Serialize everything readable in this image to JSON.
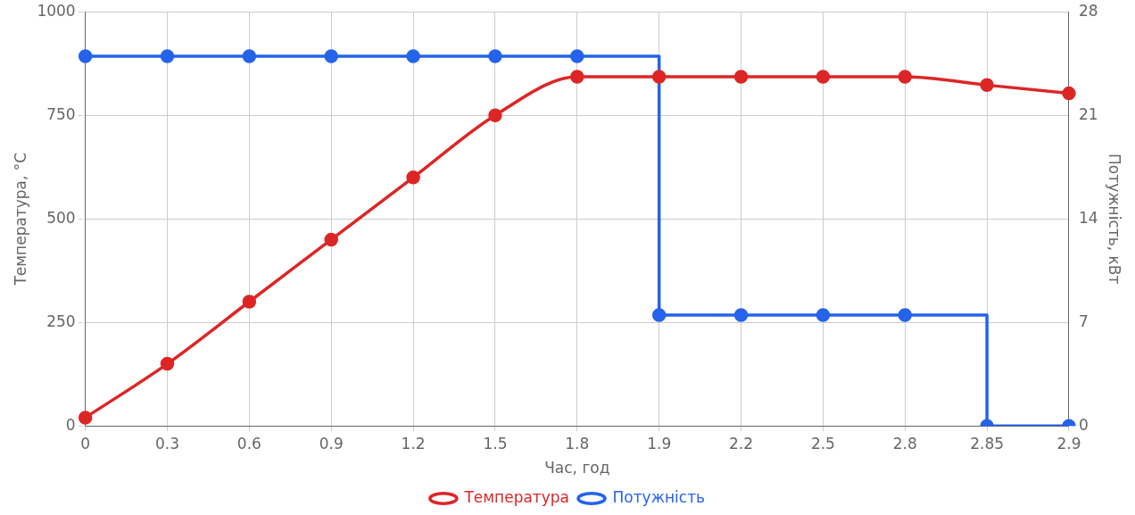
{
  "chart_data": {
    "type": "line",
    "xlabel": "Час, год",
    "ylabel": "Температура, °C",
    "y2label": "Потужність, кВт",
    "categories": [
      "0",
      "0.3",
      "0.6",
      "0.9",
      "1.2",
      "1.5",
      "1.8",
      "1.9",
      "2.2",
      "2.5",
      "2.8",
      "2.85",
      "2.9"
    ],
    "series": [
      {
        "name": "Температура",
        "color": "#dc2626",
        "values": [
          20,
          150,
          300,
          450,
          600,
          750,
          843,
          843,
          843,
          843,
          843,
          823,
          803
        ]
      },
      {
        "name": "Потужність",
        "type": "step",
        "axis": "y2",
        "color": "#2563eb",
        "values": [
          25,
          25,
          25,
          25,
          25,
          25,
          25,
          7.5,
          7.5,
          7.5,
          7.5,
          0,
          0
        ]
      }
    ],
    "ylim": [
      0,
      1000
    ],
    "yticks": [
      0,
      250,
      500,
      750,
      1000
    ],
    "y2lim": [
      0,
      28
    ],
    "y2ticks": [
      0,
      7,
      14,
      21,
      28
    ],
    "grid": true,
    "legend": "bottom",
    "marker": "circle"
  }
}
